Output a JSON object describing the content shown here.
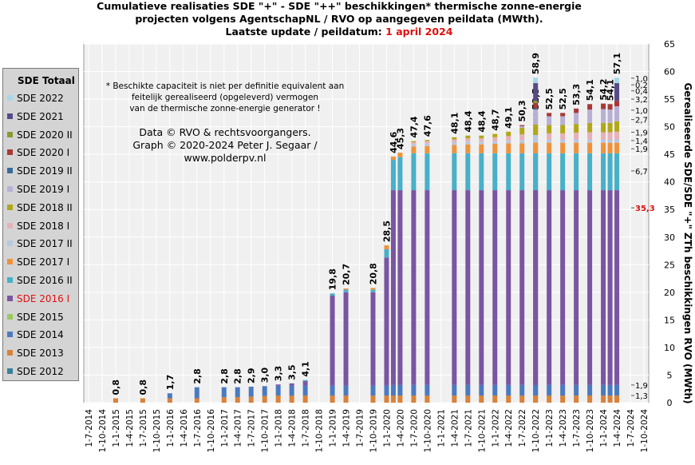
{
  "title": {
    "line1": "Cumulatieve realisaties SDE \"+\" - SDE \"++\" beschikkingen*  thermische zonne-energie",
    "line2": "projecten volgens AgentschapNL  / RVO op aangegeven peildata (MWth).",
    "line3_prefix": "Laatste update / peildatum: ",
    "line3_highlight": "1 april  2024"
  },
  "note": [
    "* Beschikte capaciteit is niet per definitie equivalent aan",
    "feitelijk gerealiseerd (opgeleverd) vermogen",
    "van de thermische zonne-energie generator !"
  ],
  "credits": [
    "Data © RVO & rechtsvoorgangers.",
    "Graph  © 2020-2024  Peter J. Segaar /",
    "www.polderpv.nl"
  ],
  "legend": {
    "title": "SDE Totaal",
    "items": [
      {
        "label": "SDE 2022",
        "color": "#a8d8e8"
      },
      {
        "label": "SDE 2021",
        "color": "#584a88"
      },
      {
        "label": "SDE 2020 II",
        "color": "#8a9a30"
      },
      {
        "label": "SDE 2020 I",
        "color": "#a83838"
      },
      {
        "label": "SDE 2019 II",
        "color": "#3a6a9a"
      },
      {
        "label": "SDE 2019 I",
        "color": "#b8b0d4"
      },
      {
        "label": "SDE 2018 II",
        "color": "#b0a818"
      },
      {
        "label": "SDE 2018 I",
        "color": "#e8b0b8"
      },
      {
        "label": "SDE 2017 II",
        "color": "#b8c8e0"
      },
      {
        "label": "SDE 2017 I",
        "color": "#f0923a"
      },
      {
        "label": "SDE 2016 II",
        "color": "#48b0c8"
      },
      {
        "label": "SDE 2016 I",
        "color": "#7a55a2",
        "text_color": "#e01010"
      },
      {
        "label": "SDE 2015",
        "color": "#9ac860"
      },
      {
        "label": "SDE 2014",
        "color": "#4a7ac0"
      },
      {
        "label": "SDE 2013",
        "color": "#d8823a"
      },
      {
        "label": "SDE 2012",
        "color": "#3a8098"
      }
    ]
  },
  "chart_data": {
    "type": "bar",
    "stacked": true,
    "y_axis_title": "Gerealiseerde SDE/SDE \"+\" ZTh beschikkingen RVO (MWth)",
    "ylim": [
      0,
      65
    ],
    "yticks": [
      0,
      5,
      10,
      15,
      20,
      25,
      30,
      35,
      40,
      45,
      50,
      55,
      60,
      65
    ],
    "x_tick_labels": [
      "1-7-2014",
      "1-10-2014",
      "1-1-2015",
      "1-4-2015",
      "1-7-2015",
      "1-10-2015",
      "1-1-2016",
      "1-4-2016",
      "1-7-2016",
      "1-10-2016",
      "1-1-2017",
      "1-4-2017",
      "1-7-2017",
      "1-10-2017",
      "1-1-2018",
      "1-4-2018",
      "1-7-2018",
      "1-10-2018",
      "1-1-2019",
      "1-4-2019",
      "1-7-2019",
      "1-10-2019",
      "1-1-2020",
      "1-4-2020",
      "1-7-2020",
      "1-10-2020",
      "1-1-2021",
      "1-4-2021",
      "1-7-2021",
      "1-10-2021",
      "1-1-2022",
      "1-4-2022",
      "1-7-2022",
      "1-10-2022",
      "1-1-2023",
      "1-4-2023",
      "1-7-2023",
      "1-10-2023",
      "1-1-2024",
      "1-4-2024",
      "1-7-2024",
      "1-10-2024"
    ],
    "bars": [
      {
        "x": "1-1-2015",
        "total_label": "0,8",
        "segments": {
          "SDE 2013": 0.8
        }
      },
      {
        "x": "1-7-2015",
        "total_label": "0,8",
        "segments": {
          "SDE 2013": 0.8
        }
      },
      {
        "x": "1-1-2016",
        "total_label": "1,7",
        "segments": {
          "SDE 2013": 0.8,
          "SDE 2014": 0.9
        }
      },
      {
        "x": "1-7-2016",
        "total_label": "2,8",
        "segments": {
          "SDE 2013": 0.8,
          "SDE 2014": 2.0
        }
      },
      {
        "x": "1-1-2017",
        "total_label": "2,8",
        "segments": {
          "SDE 2013": 1.0,
          "SDE 2014": 1.8
        }
      },
      {
        "x": "1-4-2017",
        "total_label": "2,8",
        "segments": {
          "SDE 2013": 1.0,
          "SDE 2014": 1.8
        }
      },
      {
        "x": "1-7-2017",
        "total_label": "2,9",
        "segments": {
          "SDE 2013": 1.1,
          "SDE 2014": 1.8
        }
      },
      {
        "x": "1-10-2017",
        "total_label": "3,0",
        "segments": {
          "SDE 2013": 1.2,
          "SDE 2014": 1.8
        }
      },
      {
        "x": "1-1-2018",
        "total_label": "3,3",
        "segments": {
          "SDE 2013": 1.3,
          "SDE 2014": 1.8,
          "SDE 2016 I": 0.2
        }
      },
      {
        "x": "1-4-2018",
        "total_label": "3,5",
        "segments": {
          "SDE 2013": 1.3,
          "SDE 2014": 1.8,
          "SDE 2016 I": 0.4
        }
      },
      {
        "x": "1-7-2018",
        "total_label": "4,1",
        "segments": {
          "SDE 2013": 1.3,
          "SDE 2014": 1.8,
          "SDE 2016 I": 0.8,
          "SDE 2016 II": 0.2
        }
      },
      {
        "x": "1-1-2019",
        "total_label": "19,8",
        "segments": {
          "SDE 2013": 1.3,
          "SDE 2014": 1.8,
          "SDE 2016 I": 16.3,
          "SDE 2016 II": 0.4
        }
      },
      {
        "x": "1-4-2019",
        "total_label": "20,7",
        "segments": {
          "SDE 2013": 1.3,
          "SDE 2014": 1.8,
          "SDE 2016 I": 16.9,
          "SDE 2016 II": 0.5,
          "SDE 2017 I": 0.2
        }
      },
      {
        "x": "1-10-2019",
        "total_label": "20,8",
        "segments": {
          "SDE 2013": 1.3,
          "SDE 2014": 1.8,
          "SDE 2016 I": 16.9,
          "SDE 2016 II": 0.5,
          "SDE 2017 I": 0.3
        }
      },
      {
        "x": "1-4-2020",
        "total_label": "28,5",
        "segments": {
          "SDE 2013": 1.3,
          "SDE 2014": 1.8,
          "SDE 2016 I": 23.2,
          "SDE 2016 II": 1.5,
          "SDE 2017 I": 0.7
        }
      },
      {
        "x": "1-10-2020",
        "total_label": "44,6",
        "segments": {
          "SDE 2013": 1.3,
          "SDE 2014": 1.9,
          "SDE 2016 I": 35.3,
          "SDE 2016 II": 5.5,
          "SDE 2017 I": 0.6
        }
      },
      {
        "x": "1-1-2020",
        "total_label": "45,3",
        "segments": {
          "SDE 2013": 1.3,
          "SDE 2014": 1.9,
          "SDE 2016 I": 35.3,
          "SDE 2016 II": 6.0,
          "SDE 2017 I": 0.8
        }
      },
      {
        "x": "1-4-2020",
        "total_label": "47,4",
        "segments": {
          "SDE 2013": 1.3,
          "SDE 2014": 1.9,
          "SDE 2016 I": 35.3,
          "SDE 2016 II": 6.7,
          "SDE 2017 I": 1.2,
          "SDE 2017 II": 0.4,
          "SDE 2018 I": 0.4,
          "SDE 2018 II": 0.2
        }
      },
      {
        "x": "1-7-2020",
        "total_label": "47,6",
        "segments": {
          "SDE 2013": 1.3,
          "SDE 2014": 1.9,
          "SDE 2016 I": 35.3,
          "SDE 2016 II": 6.7,
          "SDE 2017 I": 1.3,
          "SDE 2017 II": 0.5,
          "SDE 2018 I": 0.4,
          "SDE 2018 II": 0.2
        }
      },
      {
        "x": "1-10-2020",
        "total_label": "48,1",
        "segments": {
          "SDE 2013": 1.3,
          "SDE 2014": 1.9,
          "SDE 2016 I": 35.3,
          "SDE 2016 II": 6.7,
          "SDE 2017 I": 1.5,
          "SDE 2017 II": 0.5,
          "SDE 2018 I": 0.5,
          "SDE 2018 II": 0.4
        }
      },
      {
        "x": "1-4-2021",
        "total_label": "48,4",
        "segments": {
          "SDE 2013": 1.3,
          "SDE 2014": 1.9,
          "SDE 2016 I": 35.3,
          "SDE 2016 II": 6.7,
          "SDE 2017 I": 1.6,
          "SDE 2017 II": 0.5,
          "SDE 2018 I": 0.6,
          "SDE 2018 II": 0.5
        }
      },
      {
        "x": "1-7-2021",
        "total_label": "48,4",
        "segments": {
          "SDE 2013": 1.3,
          "SDE 2014": 1.9,
          "SDE 2016 I": 35.3,
          "SDE 2016 II": 6.7,
          "SDE 2017 I": 1.6,
          "SDE 2017 II": 0.5,
          "SDE 2018 I": 0.6,
          "SDE 2018 II": 0.5
        }
      },
      {
        "x": "1-10-2021",
        "total_label": "48,7",
        "segments": {
          "SDE 2013": 1.3,
          "SDE 2014": 1.9,
          "SDE 2016 I": 35.3,
          "SDE 2016 II": 6.7,
          "SDE 2017 I": 1.7,
          "SDE 2017 II": 0.5,
          "SDE 2018 I": 0.7,
          "SDE 2018 II": 0.6
        }
      },
      {
        "x": "1-1-2022",
        "total_label": "49,1",
        "segments": {
          "SDE 2013": 1.3,
          "SDE 2014": 1.9,
          "SDE 2016 I": 35.3,
          "SDE 2016 II": 6.7,
          "SDE 2017 I": 1.8,
          "SDE 2017 II": 0.5,
          "SDE 2018 I": 0.8,
          "SDE 2018 II": 0.8
        }
      },
      {
        "x": "1-4-2022",
        "total_label": "50,3",
        "segments": {
          "SDE 2013": 1.3,
          "SDE 2014": 1.9,
          "SDE 2016 I": 35.3,
          "SDE 2016 II": 6.7,
          "SDE 2017 I": 1.8,
          "SDE 2017 II": 0.6,
          "SDE 2018 I": 1.0,
          "SDE 2018 II": 1.2,
          "SDE 2019 I": 0.3,
          "SDE 2020 I": 0.2
        }
      },
      {
        "x": "1-7-2022",
        "total_label": "52,5",
        "segments": {
          "SDE 2013": 1.3,
          "SDE 2014": 1.9,
          "SDE 2016 I": 35.3,
          "SDE 2016 II": 6.7,
          "SDE 2017 I": 1.9,
          "SDE 2017 II": 0.6,
          "SDE 2018 I": 1.1,
          "SDE 2018 II": 1.5,
          "SDE 2019 I": 1.6,
          "SDE 2020 I": 0.6
        }
      },
      {
        "x": "1-10-2022",
        "total_label": "52,5",
        "segments": {
          "SDE 2013": 1.3,
          "SDE 2014": 1.9,
          "SDE 2016 I": 35.3,
          "SDE 2016 II": 6.7,
          "SDE 2017 I": 1.9,
          "SDE 2017 II": 0.6,
          "SDE 2018 I": 1.1,
          "SDE 2018 II": 1.5,
          "SDE 2019 I": 1.6,
          "SDE 2020 I": 0.6
        }
      },
      {
        "x": "1-1-2023",
        "total_label": "52,5",
        "segments": {
          "SDE 2013": 1.3,
          "SDE 2014": 1.9,
          "SDE 2016 I": 35.3,
          "SDE 2016 II": 6.7,
          "SDE 2017 I": 1.9,
          "SDE 2017 II": 0.6,
          "SDE 2018 I": 1.1,
          "SDE 2018 II": 1.5,
          "SDE 2019 I": 1.6,
          "SDE 2020 I": 0.6
        }
      },
      {
        "x": "1-4-2023",
        "total_label": "53,3",
        "segments": {
          "SDE 2013": 1.3,
          "SDE 2014": 1.9,
          "SDE 2016 I": 35.3,
          "SDE 2016 II": 6.7,
          "SDE 2017 I": 1.9,
          "SDE 2017 II": 0.6,
          "SDE 2018 I": 1.2,
          "SDE 2018 II": 1.6,
          "SDE 2019 I": 2.0,
          "SDE 2020 I": 0.8
        }
      },
      {
        "x": "1-7-2023",
        "total_label": "54,1",
        "segments": {
          "SDE 2013": 1.3,
          "SDE 2014": 1.9,
          "SDE 2016 I": 35.3,
          "SDE 2016 II": 6.7,
          "SDE 2017 I": 1.9,
          "SDE 2017 II": 0.6,
          "SDE 2018 I": 1.3,
          "SDE 2018 II": 1.7,
          "SDE 2019 I": 2.4,
          "SDE 2020 I": 1.0
        }
      },
      {
        "x": "1-10-2023",
        "total_label": "54,2",
        "segments": {
          "SDE 2013": 1.3,
          "SDE 2014": 1.9,
          "SDE 2016 I": 35.3,
          "SDE 2016 II": 6.7,
          "SDE 2017 I": 1.9,
          "SDE 2017 II": 0.6,
          "SDE 2018 I": 1.3,
          "SDE 2018 II": 1.7,
          "SDE 2019 I": 2.5,
          "SDE 2020 I": 1.0
        }
      },
      {
        "x": "1-1-2024",
        "total_label": "54,1",
        "segments": {
          "SDE 2013": 1.3,
          "SDE 2014": 1.9,
          "SDE 2016 I": 35.3,
          "SDE 2016 II": 6.7,
          "SDE 2017 I": 1.9,
          "SDE 2017 II": 0.6,
          "SDE 2018 I": 1.3,
          "SDE 2018 II": 1.7,
          "SDE 2019 I": 2.4,
          "SDE 2020 I": 1.0
        }
      },
      {
        "x": "1-4-2024",
        "total_label": "57,1",
        "segments": {
          "SDE 2013": 1.3,
          "SDE 2014": 1.9,
          "SDE 2016 I": 35.3,
          "SDE 2016 II": 6.7,
          "SDE 2017 I": 1.9,
          "SDE 2017 II": 0.6,
          "SDE 2018 I": 1.4,
          "SDE 2018 II": 1.9,
          "SDE 2019 I": 2.7,
          "SDE 2020 I": 1.0,
          "SDE 2021": 3.2,
          "SDE 2022": 1.0
        }
      },
      {
        "x": "1-4-2024",
        "total_label": "58,9",
        "segments": {
          "SDE 2013": 1.3,
          "SDE 2014": 1.9,
          "SDE 2016 I": 35.3,
          "SDE 2016 II": 6.7,
          "SDE 2017 I": 1.9,
          "SDE 2017 II": 1.4,
          "SDE 2018 II": 1.9,
          "SDE 2019 I": 2.7,
          "SDE 2020 I": 1.0,
          "SDE 2020 II": 0.4,
          "SDE 2021": 3.2,
          "SDE 2019 II": 0.2,
          "SDE 2022": 1.0
        }
      }
    ],
    "right_annotations": [
      {
        "y": 1.3,
        "label": "1,3"
      },
      {
        "y": 3.2,
        "label": "1,9"
      },
      {
        "y": 35.3,
        "label": "35,3",
        "color": "#e01010"
      },
      {
        "y": 42.0,
        "label": "6,7"
      },
      {
        "y": 46.0,
        "label": "1,9"
      },
      {
        "y": 47.5,
        "label": "1,4"
      },
      {
        "y": 49.0,
        "label": "1,9"
      },
      {
        "y": 51.3,
        "label": "2,7"
      },
      {
        "y": 53.0,
        "label": "1,0"
      },
      {
        "y": 55.0,
        "label": "3,2"
      },
      {
        "y": 56.5,
        "label": "0,4"
      },
      {
        "y": 57.6,
        "label": "0,2"
      },
      {
        "y": 58.8,
        "label": "1,0"
      }
    ]
  }
}
